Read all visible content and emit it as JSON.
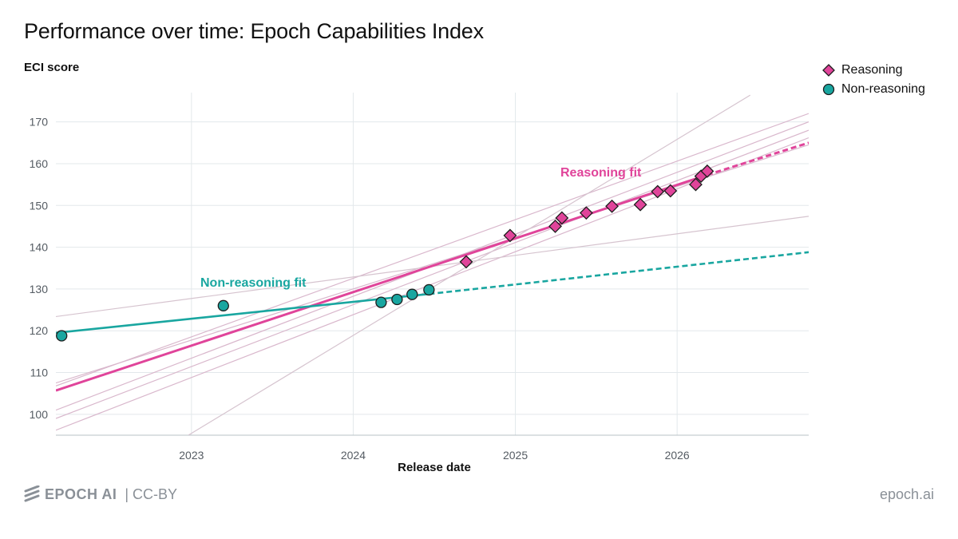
{
  "title": "Performance over time: Epoch Capabilities Index",
  "footer": {
    "brand": "EPOCH AI",
    "license": "| CC-BY",
    "site": "epoch.ai"
  },
  "colors": {
    "reasoning": "#e0449a",
    "non_reasoning": "#19a6a0",
    "grid": "#e3e8eb",
    "bootstrap": "#d9b7cc"
  },
  "chart_data": {
    "type": "scatter",
    "title": "Performance over time: Epoch Capabilities Index",
    "xlabel": "Release date",
    "ylabel": "ECI score",
    "xlim": [
      "2022-03-01",
      "2026-10-25"
    ],
    "ylim": [
      95,
      177
    ],
    "xticks": [
      "2023",
      "2024",
      "2025",
      "2026"
    ],
    "yticks": [
      100,
      110,
      120,
      130,
      140,
      150,
      160,
      170
    ],
    "grid": true,
    "legend_position": "top-right",
    "series": [
      {
        "name": "Reasoning",
        "marker": "diamond",
        "points": [
          {
            "x": "2024-09-12",
            "y": 136.5
          },
          {
            "x": "2024-12-20",
            "y": 142.8
          },
          {
            "x": "2025-04-01",
            "y": 145.0
          },
          {
            "x": "2025-04-16",
            "y": 147.0
          },
          {
            "x": "2025-06-10",
            "y": 148.2
          },
          {
            "x": "2025-08-07",
            "y": 149.8
          },
          {
            "x": "2025-10-10",
            "y": 150.2
          },
          {
            "x": "2025-11-18",
            "y": 153.3
          },
          {
            "x": "2025-12-17",
            "y": 153.5
          },
          {
            "x": "2026-02-12",
            "y": 155.0
          },
          {
            "x": "2026-02-24",
            "y": 157.0
          },
          {
            "x": "2026-03-10",
            "y": 158.2
          }
        ]
      },
      {
        "name": "Non-reasoning",
        "marker": "circle",
        "points": [
          {
            "x": "2022-03-14",
            "y": 118.8
          },
          {
            "x": "2023-03-14",
            "y": 126.0
          },
          {
            "x": "2024-03-04",
            "y": 126.8
          },
          {
            "x": "2024-04-09",
            "y": 127.5
          },
          {
            "x": "2024-05-13",
            "y": 128.7
          },
          {
            "x": "2024-06-20",
            "y": 129.8
          }
        ]
      }
    ],
    "fits": [
      {
        "label": "Reasoning fit",
        "series": "Reasoning",
        "start": {
          "x": "2022-03-01",
          "y": 105.7
        },
        "solid_end": {
          "x": "2026-03-10",
          "y": 157.3
        },
        "end": {
          "x": "2026-10-25",
          "y": 165.0
        }
      },
      {
        "label": "Non-reasoning fit",
        "series": "Non-reasoning",
        "start": {
          "x": "2022-03-01",
          "y": 119.5
        },
        "solid_end": {
          "x": "2024-06-20",
          "y": 128.8
        },
        "end": {
          "x": "2026-10-25",
          "y": 138.8
        }
      }
    ],
    "bootstrap_fits": [
      {
        "start": {
          "x": "2022-03-01",
          "y": 106.8
        },
        "end": {
          "x": "2026-10-25",
          "y": 172.0
        }
      },
      {
        "start": {
          "x": "2022-03-01",
          "y": 101.0
        },
        "end": {
          "x": "2026-10-25",
          "y": 170.0
        }
      },
      {
        "start": {
          "x": "2022-03-01",
          "y": 99.0
        },
        "end": {
          "x": "2026-10-25",
          "y": 168.0
        }
      },
      {
        "start": {
          "x": "2022-03-01",
          "y": 96.2
        },
        "end": {
          "x": "2026-10-25",
          "y": 166.2
        }
      },
      {
        "start": {
          "x": "2022-03-01",
          "y": 107.5
        },
        "end": {
          "x": "2026-10-25",
          "y": 164.5
        }
      },
      {
        "start": {
          "x": "2022-03-01",
          "y": 123.4
        },
        "end": {
          "x": "2026-10-25",
          "y": 147.4
        }
      },
      {
        "start": {
          "x": "2022-12-25",
          "y": 95.0
        },
        "end": {
          "x": "2026-06-15",
          "y": 176.4
        }
      }
    ]
  }
}
